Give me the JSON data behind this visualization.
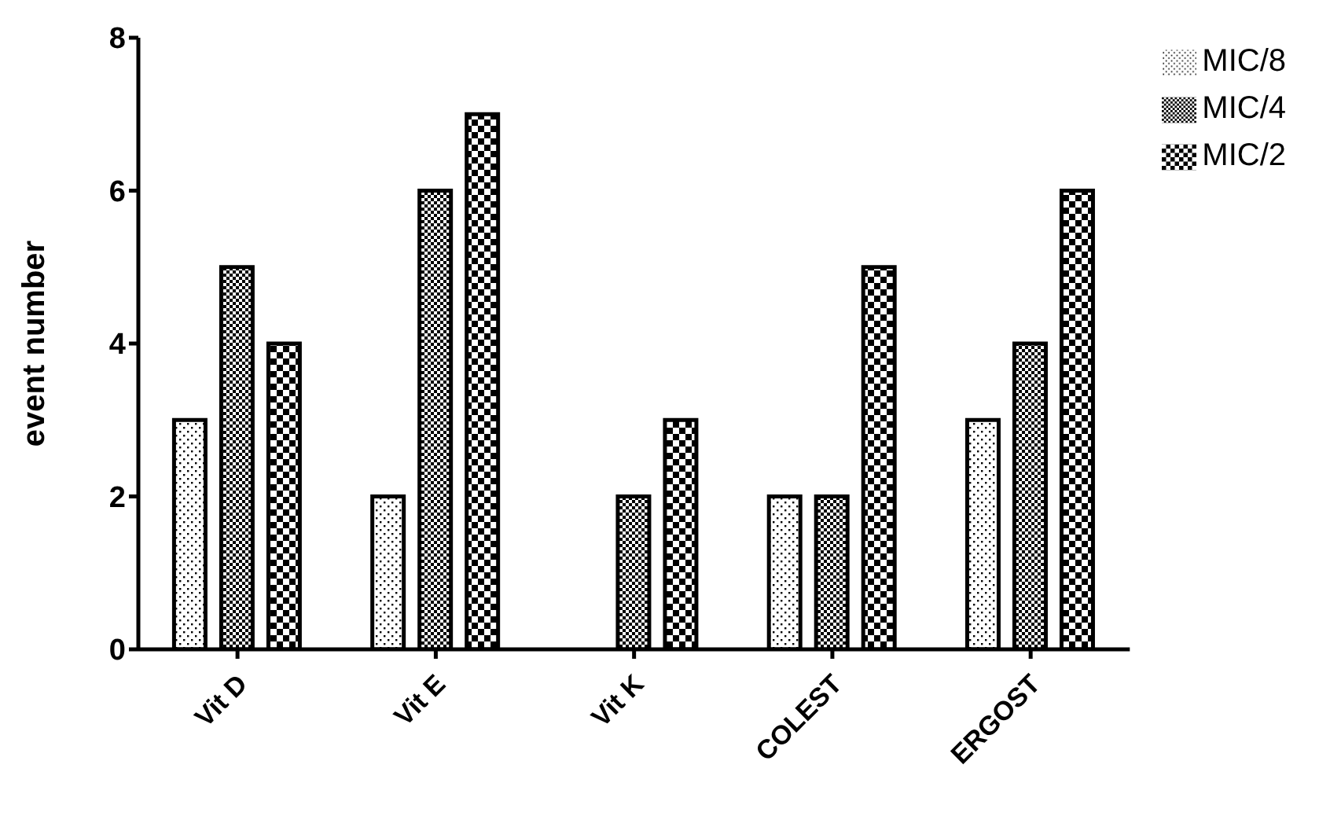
{
  "chart_data": {
    "type": "bar",
    "ylabel": "event number",
    "categories": [
      "Vit D",
      "Vit E",
      "Vit K",
      "COLEST",
      "ERGOST"
    ],
    "series": [
      {
        "name": "MIC/8",
        "color": "#000000",
        "values": [
          3,
          2,
          0,
          2,
          3
        ]
      },
      {
        "name": "MIC/4",
        "color": "#000000",
        "values": [
          5,
          6,
          2,
          2,
          4
        ]
      },
      {
        "name": "MIC/2",
        "color": "#000000",
        "values": [
          4,
          7,
          3,
          5,
          6
        ]
      }
    ],
    "ylim": [
      0,
      8
    ],
    "yticks": [
      0,
      2,
      4,
      6,
      8
    ],
    "grid": false,
    "legend": "top right"
  }
}
